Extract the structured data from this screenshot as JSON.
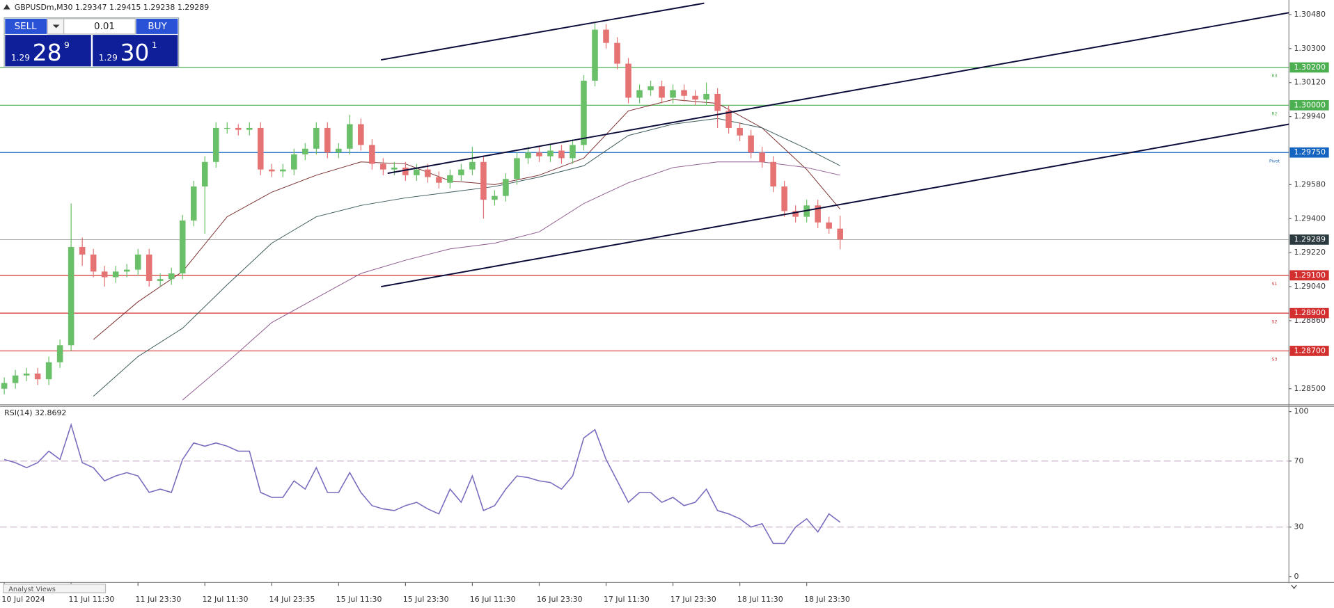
{
  "chart_data": {
    "type": "candlestick",
    "symbol": "GBPUSDm,M30",
    "categories": [
      "10 Jul 2024",
      null,
      null,
      null,
      null,
      null,
      "11 Jul 11:30",
      null,
      null,
      null,
      null,
      null,
      "11 Jul 23:30",
      null,
      null,
      null,
      null,
      null,
      "12 Jul 11:30",
      null,
      null,
      null,
      null,
      null,
      "14 Jul 23:35",
      null,
      null,
      null,
      null,
      null,
      "15 Jul 11:30",
      null,
      null,
      null,
      null,
      null,
      "15 Jul 23:30",
      null,
      null,
      null,
      null,
      null,
      "16 Jul 11:30",
      null,
      null,
      null,
      null,
      null,
      "16 Jul 23:30",
      null,
      null,
      null,
      null,
      null,
      "17 Jul 11:30",
      null,
      null,
      null,
      null,
      null,
      "17 Jul 23:30",
      null,
      null,
      null,
      null,
      null,
      "18 Jul 11:30",
      null,
      null,
      null,
      null,
      null,
      "18 Jul 23:30",
      null,
      null,
      null
    ],
    "open": [
      1.285,
      1.2853,
      1.2857,
      1.2858,
      1.2855,
      1.2864,
      1.2873,
      1.2925,
      1.2921,
      1.2912,
      1.2909,
      1.2912,
      1.2913,
      1.2921,
      1.2907,
      1.2908,
      1.2911,
      1.2939,
      1.2957,
      1.297,
      1.2988,
      1.2988,
      1.2987,
      1.2988,
      1.2966,
      1.2965,
      1.2966,
      1.2974,
      1.2977,
      1.2988,
      1.2975,
      1.2977,
      1.299,
      1.2979,
      1.2969,
      1.2966,
      1.2967,
      1.2963,
      1.2966,
      1.2962,
      1.2959,
      1.2963,
      1.2966,
      1.297,
      1.295,
      1.2952,
      1.2961,
      1.2972,
      1.2975,
      1.2973,
      1.2976,
      1.2972,
      1.2979,
      1.3013,
      1.304,
      1.3033,
      1.3022,
      1.3004,
      1.3008,
      1.301,
      1.3004,
      1.3008,
      1.3005,
      1.3003,
      1.3006,
      1.2997,
      1.2988,
      1.2984,
      1.2975,
      1.297,
      1.2957,
      1.2944,
      1.2941,
      1.2947,
      1.2938,
      1.29347
    ],
    "high": [
      1.2856,
      1.286,
      1.2861,
      1.2861,
      1.2867,
      1.2876,
      1.2948,
      1.293,
      1.2924,
      1.2915,
      1.2915,
      1.2916,
      1.2924,
      1.2924,
      1.2911,
      1.2914,
      1.2942,
      1.296,
      1.2973,
      1.2991,
      1.2991,
      1.299,
      1.2991,
      1.2991,
      1.2969,
      1.2969,
      1.2977,
      1.298,
      1.2991,
      1.2991,
      1.298,
      1.2995,
      1.2993,
      1.2982,
      1.2972,
      1.297,
      1.297,
      1.2969,
      1.2969,
      1.2965,
      1.2966,
      1.2969,
      1.2978,
      1.2973,
      1.2955,
      1.2964,
      1.2975,
      1.2978,
      1.2978,
      1.2979,
      1.2979,
      1.2982,
      1.3016,
      1.3044,
      1.3043,
      1.3036,
      1.3025,
      1.3011,
      1.3013,
      1.3013,
      1.3011,
      1.3011,
      1.3008,
      1.3012,
      1.3009,
      1.3,
      1.2991,
      1.2987,
      1.2978,
      1.2973,
      1.296,
      1.2947,
      1.295,
      1.295,
      1.2941,
      1.29415
    ],
    "low": [
      1.2847,
      1.285,
      1.2854,
      1.2852,
      1.2852,
      1.2861,
      1.287,
      1.2915,
      1.2909,
      1.2904,
      1.2906,
      1.2909,
      1.291,
      1.2904,
      1.2904,
      1.2905,
      1.2908,
      1.2936,
      1.2932,
      1.2967,
      1.2985,
      1.2984,
      1.2984,
      1.2963,
      1.2962,
      1.2962,
      1.2963,
      1.2971,
      1.2974,
      1.2972,
      1.2972,
      1.2974,
      1.2976,
      1.2966,
      1.2963,
      1.2963,
      1.296,
      1.296,
      1.2959,
      1.2956,
      1.2956,
      1.296,
      1.2963,
      1.294,
      1.2947,
      1.2949,
      1.2958,
      1.2969,
      1.297,
      1.297,
      1.2969,
      1.2969,
      1.2976,
      1.301,
      1.303,
      1.3019,
      1.3001,
      1.3001,
      1.3005,
      1.3001,
      1.3001,
      1.3002,
      1.3,
      1.3,
      1.2988,
      1.2985,
      1.2981,
      1.2972,
      1.2967,
      1.2954,
      1.2941,
      1.2938,
      1.2938,
      1.2935,
      1.2932,
      1.29238
    ],
    "close": [
      1.2853,
      1.2857,
      1.2858,
      1.2855,
      1.2864,
      1.2873,
      1.2925,
      1.2921,
      1.2912,
      1.2909,
      1.2912,
      1.2913,
      1.2921,
      1.2907,
      1.2908,
      1.2911,
      1.2939,
      1.2957,
      1.297,
      1.2988,
      1.2988,
      1.2987,
      1.2988,
      1.2966,
      1.2965,
      1.2966,
      1.2974,
      1.2977,
      1.2988,
      1.2975,
      1.2977,
      1.299,
      1.2979,
      1.2969,
      1.2966,
      1.2967,
      1.2963,
      1.2966,
      1.2962,
      1.2959,
      1.2963,
      1.2966,
      1.297,
      1.295,
      1.2952,
      1.2961,
      1.2972,
      1.2975,
      1.2973,
      1.2976,
      1.2972,
      1.2979,
      1.3013,
      1.304,
      1.3033,
      1.3022,
      1.3004,
      1.3008,
      1.301,
      1.3004,
      1.3008,
      1.3005,
      1.3003,
      1.3006,
      1.2997,
      1.2988,
      1.2984,
      1.2975,
      1.297,
      1.2957,
      1.2944,
      1.2941,
      1.2947,
      1.2938,
      1.29347,
      1.29289
    ],
    "up_color": "#6abf69",
    "down_color": "#e57373",
    "ylim": [
      1.28424,
      1.30557
    ],
    "yticks": [
      {
        "value": 1.3048,
        "label": "1.30480"
      },
      {
        "value": 1.303,
        "label": "1.30300"
      },
      {
        "value": 1.3012,
        "label": "1.30120"
      },
      {
        "value": 1.2994,
        "label": "1.29940"
      },
      {
        "value": 1.2958,
        "label": "1.29580"
      },
      {
        "value": 1.294,
        "label": "1.29400"
      },
      {
        "value": 1.2922,
        "label": "1.29220"
      },
      {
        "value": 1.2904,
        "label": "1.29040"
      },
      {
        "value": 1.2886,
        "label": "1.28860"
      },
      {
        "value": 1.285,
        "label": "1.28500"
      }
    ],
    "grid": false,
    "levels": [
      {
        "name": "R3",
        "price": {
          "value": 1.302,
          "label": "1.30200"
        },
        "color": "#4cb050"
      },
      {
        "name": "R2",
        "price": {
          "value": 1.3,
          "label": "1.30000"
        },
        "color": "#4cb050"
      },
      {
        "name": "Pivot",
        "price": {
          "value": 1.2975,
          "label": "1.29750"
        },
        "color": "#1565c0"
      },
      {
        "name": "S1",
        "price": {
          "value": 1.291,
          "label": "1.29100"
        },
        "color": "#d32f2f"
      },
      {
        "name": "S2",
        "price": {
          "value": 1.289,
          "label": "1.28900"
        },
        "color": "#d32f2f"
      },
      {
        "name": "S3",
        "price": {
          "value": 1.287,
          "label": "1.28700"
        },
        "color": "#d32f2f"
      }
    ],
    "ma": [
      {
        "color": "#7a2e2e",
        "x": [
          8,
          12,
          16,
          20,
          24,
          28,
          32,
          36,
          40,
          44,
          48,
          52,
          56,
          60,
          64,
          68,
          72,
          75
        ],
        "values": [
          1.2876,
          1.2896,
          1.2912,
          1.2941,
          1.2954,
          1.2963,
          1.297,
          1.2969,
          1.296,
          1.2958,
          1.2963,
          1.2972,
          1.2997,
          1.3003,
          1.3001,
          1.2988,
          1.2966,
          1.2945
        ]
      },
      {
        "color": "#3d5a5a",
        "x": [
          8,
          12,
          16,
          20,
          24,
          28,
          32,
          36,
          40,
          44,
          48,
          52,
          56,
          60,
          64,
          68,
          72,
          75
        ],
        "values": [
          1.2846,
          1.2867,
          1.2882,
          1.2905,
          1.2927,
          1.2941,
          1.2947,
          1.2951,
          1.2954,
          1.2957,
          1.2962,
          1.2968,
          1.2984,
          1.299,
          1.2993,
          1.2988,
          1.2977,
          1.2968
        ]
      },
      {
        "color": "#8e5a8e",
        "x": [
          16,
          20,
          24,
          28,
          32,
          36,
          40,
          44,
          48,
          52,
          56,
          60,
          64,
          68,
          72,
          75
        ],
        "values": [
          1.2844,
          1.2864,
          1.2885,
          1.2898,
          1.2911,
          1.2918,
          1.2924,
          1.2927,
          1.2933,
          1.2948,
          1.2959,
          1.2967,
          1.297,
          1.297,
          1.2967,
          1.2963
        ]
      }
    ],
    "trendlines": [
      {
        "color": "#0b0b3a",
        "x": [
          33.8,
          62.8
        ],
        "y": [
          1.3024,
          1.3054
        ]
      },
      {
        "color": "#0b0b3a",
        "x": [
          34.4,
          115.3
        ],
        "y": [
          1.2964,
          1.3049
        ]
      },
      {
        "color": "#0b0b3a",
        "x": [
          33.8,
          115.3
        ],
        "y": [
          1.2904,
          1.299
        ]
      }
    ],
    "rsi": {
      "type": "line",
      "title": "RSI(14)",
      "color": "#7b6bbf",
      "values": [
        71,
        69,
        66,
        69,
        76,
        71,
        92,
        69,
        66,
        58,
        61,
        63,
        61,
        51,
        53,
        51,
        71,
        81,
        79,
        81,
        79,
        76,
        76,
        51,
        48,
        48,
        58,
        53,
        66,
        51,
        51,
        63,
        51,
        43,
        41,
        40,
        43,
        45,
        41,
        38,
        53,
        45,
        61,
        40,
        43,
        53,
        61,
        60,
        58,
        57,
        53,
        61,
        84,
        89,
        71,
        58,
        45,
        51,
        51,
        45,
        48,
        43,
        45,
        53,
        40,
        38,
        35,
        30,
        32,
        20,
        20,
        30,
        35,
        27,
        38,
        32.8692
      ],
      "ylim": [
        0,
        100
      ],
      "yticks": [
        100,
        70,
        30,
        0
      ],
      "levels": [
        70,
        30
      ]
    }
  },
  "trade_panel": {
    "sell": "SELL",
    "lot": "0.01",
    "buy": "BUY",
    "bid": {
      "prefix": "1.29",
      "pips": "28",
      "point": "9"
    },
    "ask": {
      "prefix": "1.29",
      "pips": "30",
      "point": "1"
    }
  },
  "bottom_tab": "Analyst Views"
}
